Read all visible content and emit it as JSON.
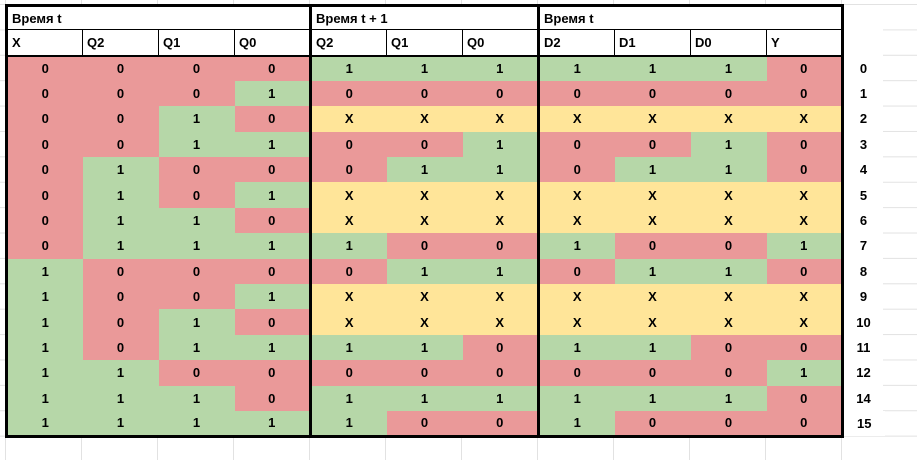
{
  "sheet": {
    "header_groups": [
      {
        "label": "Время t",
        "columns": [
          "X",
          "Q2",
          "Q1",
          "Q0"
        ]
      },
      {
        "label": "Время t + 1",
        "columns": [
          "Q2",
          "Q1",
          "Q0"
        ]
      },
      {
        "label": "Время t",
        "columns": [
          "D2",
          "D1",
          "D0",
          "Y"
        ]
      }
    ],
    "value_colors": {
      "0": "#ea9999",
      "1": "#b6d7a8",
      "X": "#ffe599"
    },
    "rows": [
      {
        "label": "0",
        "values": [
          "0",
          "0",
          "0",
          "0",
          "1",
          "1",
          "1",
          "1",
          "1",
          "1",
          "0"
        ]
      },
      {
        "label": "1",
        "values": [
          "0",
          "0",
          "0",
          "1",
          "0",
          "0",
          "0",
          "0",
          "0",
          "0",
          "0"
        ]
      },
      {
        "label": "2",
        "values": [
          "0",
          "0",
          "1",
          "0",
          "X",
          "X",
          "X",
          "X",
          "X",
          "X",
          "X"
        ]
      },
      {
        "label": "3",
        "values": [
          "0",
          "0",
          "1",
          "1",
          "0",
          "0",
          "1",
          "0",
          "0",
          "1",
          "0"
        ]
      },
      {
        "label": "4",
        "values": [
          "0",
          "1",
          "0",
          "0",
          "0",
          "1",
          "1",
          "0",
          "1",
          "1",
          "0"
        ]
      },
      {
        "label": "5",
        "values": [
          "0",
          "1",
          "0",
          "1",
          "X",
          "X",
          "X",
          "X",
          "X",
          "X",
          "X"
        ]
      },
      {
        "label": "6",
        "values": [
          "0",
          "1",
          "1",
          "0",
          "X",
          "X",
          "X",
          "X",
          "X",
          "X",
          "X"
        ]
      },
      {
        "label": "7",
        "values": [
          "0",
          "1",
          "1",
          "1",
          "1",
          "0",
          "0",
          "1",
          "0",
          "0",
          "1"
        ]
      },
      {
        "label": "8",
        "values": [
          "1",
          "0",
          "0",
          "0",
          "0",
          "1",
          "1",
          "0",
          "1",
          "1",
          "0"
        ]
      },
      {
        "label": "9",
        "values": [
          "1",
          "0",
          "0",
          "1",
          "X",
          "X",
          "X",
          "X",
          "X",
          "X",
          "X"
        ]
      },
      {
        "label": "10",
        "values": [
          "1",
          "0",
          "1",
          "0",
          "X",
          "X",
          "X",
          "X",
          "X",
          "X",
          "X"
        ]
      },
      {
        "label": "11",
        "values": [
          "1",
          "0",
          "1",
          "1",
          "1",
          "1",
          "0",
          "1",
          "1",
          "0",
          "0"
        ]
      },
      {
        "label": "12",
        "values": [
          "1",
          "1",
          "0",
          "0",
          "0",
          "0",
          "0",
          "0",
          "0",
          "0",
          "1"
        ]
      },
      {
        "label": "14",
        "values": [
          "1",
          "1",
          "1",
          "0",
          "1",
          "1",
          "1",
          "1",
          "1",
          "1",
          "0"
        ]
      },
      {
        "label": "15",
        "values": [
          "1",
          "1",
          "1",
          "1",
          "1",
          "0",
          "0",
          "1",
          "0",
          "0",
          "0"
        ]
      }
    ]
  }
}
